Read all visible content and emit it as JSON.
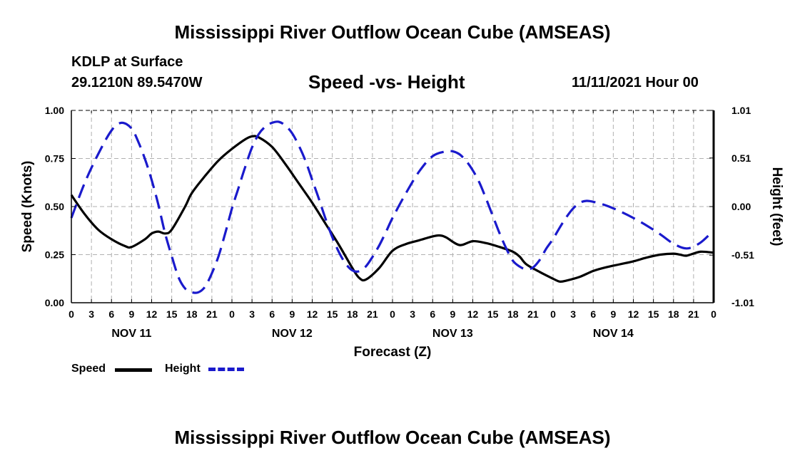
{
  "page": {
    "title_top": "Mississippi River Outflow Ocean Cube (AMSEAS)",
    "title_bottom": "Mississippi River Outflow Ocean Cube (AMSEAS)",
    "station": "KDLP at Surface",
    "coords": "29.1210N  89.5470W",
    "chart_title": "Speed -vs- Height",
    "date": "11/11/2021 Hour 00"
  },
  "legend": {
    "speed": "Speed",
    "height": "Height"
  },
  "colors": {
    "speed": "#000000",
    "height": "#1a1acc",
    "grid": "#b0b0b0"
  },
  "chart_data": {
    "type": "line",
    "title": "Speed -vs- Height",
    "xlabel": "Forecast (Z)",
    "ylabel": "Speed (Knots)",
    "y2label": "Height (feet)",
    "x_range_hours": [
      0,
      96
    ],
    "ylim": [
      0,
      1
    ],
    "y2lim": [
      -1.01,
      1.01
    ],
    "y_ticks": [
      "1.00",
      "0.75",
      "0.50",
      "0.25",
      "0.00"
    ],
    "y_tick_values": [
      1.0,
      0.75,
      0.5,
      0.25,
      0.0
    ],
    "y2_ticks": [
      "1.01",
      "0.51",
      "0.00",
      "-0.51",
      "-1.01"
    ],
    "y2_tick_values": [
      1.01,
      0.51,
      0.0,
      -0.51,
      -1.01
    ],
    "x_ticks": [
      "0",
      "3",
      "6",
      "9",
      "12",
      "15",
      "18",
      "21",
      "0",
      "3",
      "6",
      "9",
      "12",
      "15",
      "18",
      "21",
      "0",
      "3",
      "6",
      "9",
      "12",
      "15",
      "18",
      "21",
      "0",
      "3",
      "6",
      "9",
      "12",
      "15",
      "18",
      "21",
      "0"
    ],
    "x_tick_hours": [
      0,
      3,
      6,
      9,
      12,
      15,
      18,
      21,
      24,
      27,
      30,
      33,
      36,
      39,
      42,
      45,
      48,
      51,
      54,
      57,
      60,
      63,
      66,
      69,
      72,
      75,
      78,
      81,
      84,
      87,
      90,
      93,
      96
    ],
    "days": [
      "NOV 11",
      "NOV 12",
      "NOV 13",
      "NOV 14"
    ],
    "day_center_hours": [
      9,
      33,
      57,
      81
    ],
    "series": [
      {
        "name": "Speed",
        "axis": "left",
        "style": "solid",
        "x": [
          0,
          2,
          4,
          6,
          8,
          9,
          11,
          12,
          13,
          14,
          15,
          17,
          18,
          20,
          22,
          24,
          26,
          27,
          28,
          30,
          32,
          34,
          36,
          38,
          40,
          42,
          43,
          44,
          46,
          48,
          50,
          52,
          54,
          55,
          56,
          58,
          60,
          62,
          64,
          66,
          67,
          68,
          70,
          72,
          73,
          74,
          76,
          78,
          80,
          82,
          84,
          86,
          88,
          90,
          91,
          92,
          94,
          96
        ],
        "values": [
          0.56,
          0.46,
          0.38,
          0.33,
          0.295,
          0.29,
          0.33,
          0.36,
          0.37,
          0.36,
          0.38,
          0.5,
          0.57,
          0.66,
          0.74,
          0.8,
          0.85,
          0.865,
          0.86,
          0.81,
          0.72,
          0.62,
          0.52,
          0.41,
          0.3,
          0.18,
          0.13,
          0.12,
          0.18,
          0.27,
          0.305,
          0.325,
          0.345,
          0.35,
          0.34,
          0.3,
          0.32,
          0.31,
          0.29,
          0.265,
          0.24,
          0.2,
          0.16,
          0.125,
          0.11,
          0.115,
          0.135,
          0.165,
          0.185,
          0.2,
          0.215,
          0.235,
          0.25,
          0.255,
          0.25,
          0.245,
          0.265,
          0.26
        ]
      },
      {
        "name": "Height",
        "axis": "right",
        "style": "dashed",
        "x": [
          0,
          2,
          4,
          6,
          7.5,
          9,
          10,
          11,
          12,
          13,
          14,
          15,
          16,
          17,
          18,
          19,
          20,
          21,
          22,
          23,
          24,
          25,
          26,
          27,
          28,
          29,
          30,
          31,
          32,
          33,
          34,
          35,
          36,
          37,
          38,
          39,
          40,
          41,
          42,
          43,
          44,
          45,
          46,
          47,
          48,
          50,
          52,
          54,
          56,
          57,
          58,
          59,
          60,
          61,
          62,
          63,
          64,
          65,
          66,
          67,
          68,
          69,
          70,
          71,
          72,
          73,
          74,
          75,
          76,
          77,
          78,
          80,
          82,
          84,
          86,
          88,
          90,
          92,
          94,
          96
        ],
        "values": [
          -0.12,
          0.25,
          0.55,
          0.8,
          0.88,
          0.82,
          0.68,
          0.5,
          0.28,
          0.02,
          -0.28,
          -0.52,
          -0.74,
          -0.86,
          -0.9,
          -0.9,
          -0.84,
          -0.7,
          -0.52,
          -0.28,
          -0.02,
          0.2,
          0.42,
          0.62,
          0.76,
          0.84,
          0.88,
          0.89,
          0.85,
          0.77,
          0.64,
          0.48,
          0.28,
          0.08,
          -0.13,
          -0.32,
          -0.48,
          -0.6,
          -0.67,
          -0.68,
          -0.63,
          -0.53,
          -0.41,
          -0.27,
          -0.12,
          0.14,
          0.37,
          0.53,
          0.58,
          0.58,
          0.55,
          0.48,
          0.38,
          0.25,
          0.08,
          -0.1,
          -0.28,
          -0.44,
          -0.57,
          -0.63,
          -0.66,
          -0.64,
          -0.56,
          -0.44,
          -0.34,
          -0.22,
          -0.11,
          -0.02,
          0.04,
          0.06,
          0.05,
          0.01,
          -0.05,
          -0.12,
          -0.2,
          -0.29,
          -0.39,
          -0.44,
          -0.38,
          -0.25
        ]
      }
    ]
  }
}
